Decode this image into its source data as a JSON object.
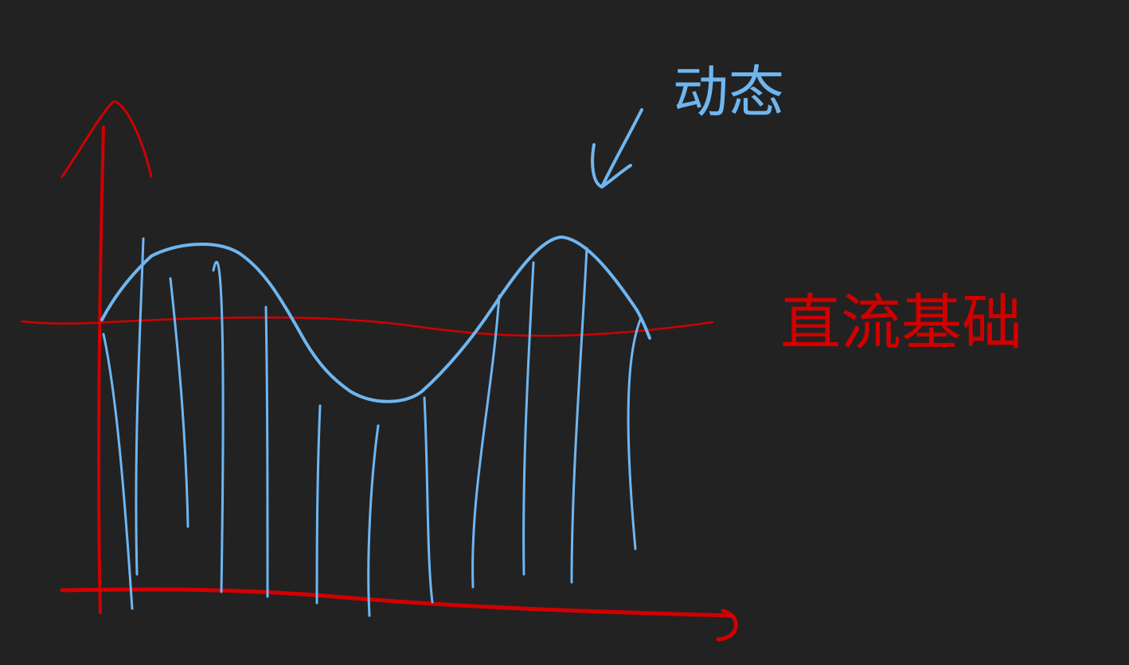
{
  "annotations": {
    "dynamic": "动态",
    "dc_baseline": "直流基础"
  }
}
